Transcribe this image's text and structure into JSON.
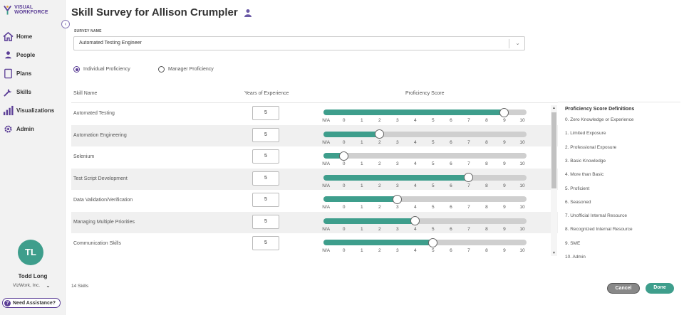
{
  "brand": {
    "name": "VISUAL WORKFORCE"
  },
  "colors": {
    "accent": "#5b3e96",
    "primary": "#3e9e8c",
    "track": "#cfcfcf"
  },
  "nav": [
    {
      "label": "Home",
      "icon": "home-icon"
    },
    {
      "label": "People",
      "icon": "people-icon"
    },
    {
      "label": "Plans",
      "icon": "plans-icon"
    },
    {
      "label": "Skills",
      "icon": "skills-icon"
    },
    {
      "label": "Visualizations",
      "icon": "visualizations-icon"
    },
    {
      "label": "Admin",
      "icon": "gear-icon"
    }
  ],
  "user": {
    "initials": "TL",
    "name": "Todd Long",
    "org": "VizWork, Inc."
  },
  "assist": {
    "label": "Need Assistance?",
    "icon": "question-icon"
  },
  "page": {
    "title": "Skill Survey for Allison Crumpler",
    "title_icon": "person-icon"
  },
  "survey": {
    "label": "SURVEY NAME",
    "value": "Automated Testing Engineer"
  },
  "proficiency_modes": [
    {
      "label": "Individual Proficiency",
      "checked": true
    },
    {
      "label": "Manager Proficiency",
      "checked": false
    }
  ],
  "columns": {
    "skill": "Skill Name",
    "years": "Years of Experience",
    "score": "Proficiency Score"
  },
  "scale": [
    "N/A",
    "0",
    "1",
    "2",
    "3",
    "4",
    "5",
    "6",
    "7",
    "8",
    "9",
    "10"
  ],
  "skills": [
    {
      "name": "Automated Testing",
      "years": "5",
      "score": 9
    },
    {
      "name": "Automation Engineering",
      "years": "5",
      "score": 2
    },
    {
      "name": "Selenium",
      "years": "5",
      "score": 0
    },
    {
      "name": "Test Script Development",
      "years": "5",
      "score": 7
    },
    {
      "name": "Data Validation/Verification",
      "years": "5",
      "score": 3
    },
    {
      "name": "Managing Multiple Priorities",
      "years": "5",
      "score": 4
    },
    {
      "name": "Communication Skills",
      "years": "5",
      "score": 5
    }
  ],
  "definitions": {
    "title": "Proficiency Score Definitions",
    "items": [
      "0. Zero Knowledge or Experience",
      "1. Limited Exposure",
      "2. Professional Exposure",
      "3. Basic Knowledge",
      "4. More than Basic",
      "5. Proficient",
      "6. Seasoned",
      "7. Unofficial Internal Resource",
      "8. Recognized Internal Resource",
      "9. SME",
      "10. Admin"
    ]
  },
  "footer": {
    "count": "14 Skills",
    "cancel": "Cancel",
    "done": "Done"
  }
}
